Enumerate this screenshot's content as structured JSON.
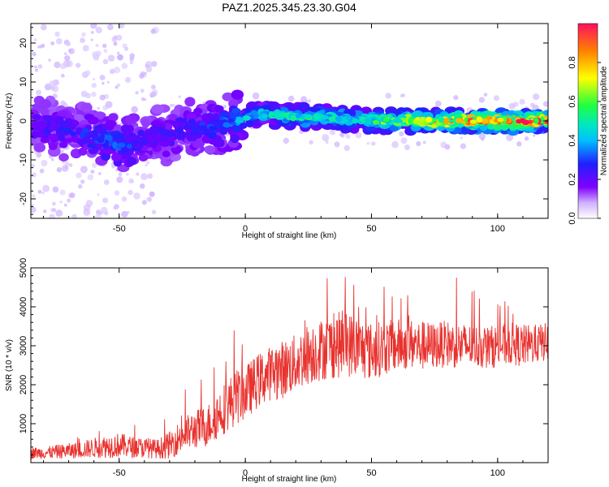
{
  "title": "PAZ1.2025.345.23.30.G04",
  "colors": {
    "snr_line": "#e8322e",
    "frame": "#000000",
    "background": "#ffffff",
    "colormap": [
      "#ffffff",
      "#c8a8ff",
      "#7a00ff",
      "#2020ff",
      "#00b0ff",
      "#00e8c0",
      "#20ff40",
      "#ffff00",
      "#ff8000",
      "#ff1050"
    ]
  },
  "chart_data": [
    {
      "type": "heatmap",
      "name": "spectrogram",
      "xlabel": "Height of straight line (km)",
      "ylabel": "Frequency (Hz)",
      "xlim": [
        -85,
        120
      ],
      "ylim": [
        -25,
        25
      ],
      "x_ticks": [
        -50,
        0,
        50,
        100
      ],
      "x_tick_labels": [
        "-50",
        "0",
        "50",
        "100"
      ],
      "y_ticks": [
        -20,
        -10,
        0,
        10,
        20
      ],
      "y_tick_labels": [
        "-20",
        "-10",
        "0",
        "10",
        "20"
      ],
      "ridge": {
        "x": [
          -85,
          -75,
          -65,
          -60,
          -55,
          -50,
          -45,
          -40,
          -35,
          -30,
          -25,
          -20,
          -15,
          -10,
          -5,
          0,
          5,
          10,
          20,
          30,
          40,
          50,
          60,
          70,
          80,
          90,
          100,
          110,
          120
        ],
        "center_hz": [
          -1,
          -2,
          -3,
          -4,
          -5,
          -6,
          -6.5,
          -5,
          -3,
          -4,
          -2,
          -2,
          -1.5,
          -1,
          0,
          1,
          1.5,
          1.5,
          1,
          1,
          0.5,
          0,
          0,
          0,
          0,
          0,
          0,
          0,
          0
        ],
        "amplitude": [
          0.2,
          0.22,
          0.25,
          0.3,
          0.32,
          0.3,
          0.28,
          0.2,
          0.22,
          0.2,
          0.22,
          0.25,
          0.28,
          0.3,
          0.35,
          0.45,
          0.5,
          0.5,
          0.55,
          0.6,
          0.55,
          0.6,
          0.75,
          0.85,
          0.9,
          0.92,
          0.95,
          1.0,
          1.0
        ]
      },
      "colorbar": {
        "label": "Normalized spectral amplitude",
        "range": [
          0,
          1
        ],
        "ticks": [
          0.0,
          0.2,
          0.4,
          0.6,
          0.8
        ],
        "tick_labels": [
          "0.0",
          "0.2",
          "0.4",
          "0.6",
          "0.8"
        ]
      }
    },
    {
      "type": "line",
      "name": "snr",
      "xlabel": "Height of straight line (km)",
      "ylabel": "SNR (10 * v/v)",
      "xlim": [
        -85,
        120
      ],
      "ylim": [
        0,
        5000
      ],
      "x_ticks": [
        -50,
        0,
        50,
        100
      ],
      "x_tick_labels": [
        "-50",
        "0",
        "50",
        "100"
      ],
      "y_ticks": [
        1000,
        2000,
        3000,
        4000,
        5000
      ],
      "y_tick_labels": [
        "1000",
        "2000",
        "3000",
        "4000",
        "5000"
      ],
      "series": [
        {
          "name": "SNR",
          "x": [
            -85,
            -80,
            -75,
            -70,
            -65,
            -60,
            -55,
            -50,
            -45,
            -40,
            -35,
            -30,
            -25,
            -20,
            -15,
            -10,
            -5,
            0,
            5,
            10,
            15,
            20,
            25,
            30,
            35,
            40,
            45,
            50,
            55,
            60,
            65,
            70,
            75,
            80,
            85,
            90,
            95,
            100,
            105,
            110,
            115,
            120
          ],
          "mean": [
            250,
            250,
            280,
            300,
            330,
            380,
            420,
            450,
            400,
            380,
            350,
            450,
            700,
            850,
            950,
            1300,
            1600,
            1800,
            2100,
            2300,
            2400,
            2550,
            2800,
            2900,
            3000,
            3050,
            2950,
            2850,
            2950,
            3000,
            3050,
            3000,
            3000,
            3050,
            3000,
            3000,
            2950,
            3000,
            3050,
            3000,
            3050,
            3100
          ],
          "spread": [
            150,
            150,
            180,
            200,
            220,
            260,
            300,
            320,
            280,
            260,
            250,
            350,
            450,
            500,
            550,
            650,
            700,
            700,
            700,
            700,
            750,
            750,
            800,
            800,
            850,
            850,
            800,
            750,
            700,
            700,
            650,
            650,
            600,
            600,
            600,
            550,
            550,
            550,
            550,
            550,
            500,
            500
          ]
        }
      ]
    }
  ]
}
